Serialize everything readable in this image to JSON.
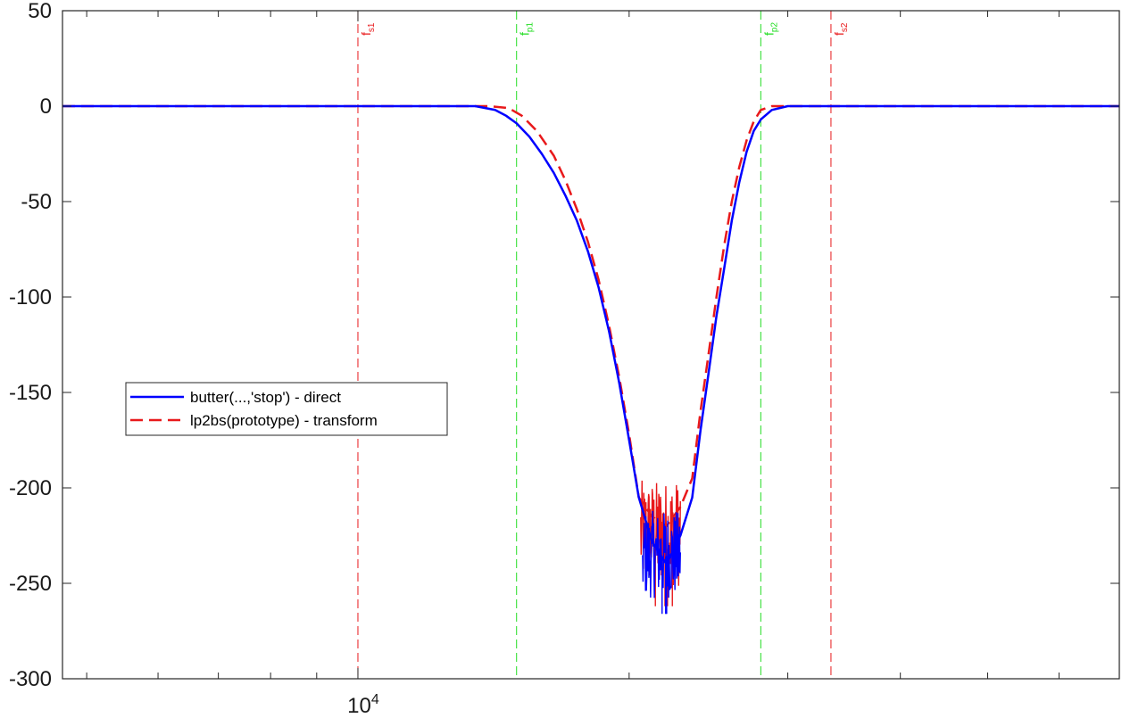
{
  "chart_data": {
    "type": "line",
    "title": "",
    "xlabel": "",
    "ylabel": "",
    "xscale": "log",
    "xlim": [
      4700,
      70000
    ],
    "ylim": [
      -300,
      50
    ],
    "grid": false,
    "legend_position": "left",
    "yticks": [
      50,
      0,
      -50,
      -100,
      -150,
      -200,
      -250,
      -300
    ],
    "ytick_labels": [
      "50",
      "0",
      "-50",
      "-100",
      "-150",
      "-200",
      "-250",
      "-300"
    ],
    "xticks": [
      5000,
      6000,
      7000,
      8000,
      9000,
      10000,
      20000,
      30000,
      40000,
      50000,
      60000,
      70000
    ],
    "xtick_label": {
      "base": "10",
      "exponent": "4",
      "at": 10000
    },
    "vertical_markers": [
      {
        "name": "fs1",
        "base": "f",
        "sub": "s1",
        "x": 10000,
        "color": "#e8191b"
      },
      {
        "name": "fp1",
        "base": "f",
        "sub": "p1",
        "x": 15000,
        "color": "#22dd22"
      },
      {
        "name": "fp2",
        "base": "f",
        "sub": "p2",
        "x": 28000,
        "color": "#22dd22"
      },
      {
        "name": "fs2",
        "base": "f",
        "sub": "s2",
        "x": 33500,
        "color": "#e8191b"
      }
    ],
    "series": [
      {
        "name": "butter(...,'stop') - direct",
        "color": "#0000ff",
        "style": "solid",
        "points": [
          [
            4700,
            0
          ],
          [
            12000,
            0
          ],
          [
            13500,
            0
          ],
          [
            14200,
            -2
          ],
          [
            14600,
            -5
          ],
          [
            15000,
            -9
          ],
          [
            15500,
            -16
          ],
          [
            16000,
            -25
          ],
          [
            16500,
            -35
          ],
          [
            17000,
            -47
          ],
          [
            17500,
            -60
          ],
          [
            18000,
            -76
          ],
          [
            18500,
            -95
          ],
          [
            19000,
            -118
          ],
          [
            19500,
            -145
          ],
          [
            20000,
            -175
          ],
          [
            20500,
            -205
          ],
          [
            21200,
            -228
          ],
          [
            22000,
            -240
          ],
          [
            22800,
            -225
          ],
          [
            23500,
            -205
          ],
          [
            24000,
            -170
          ],
          [
            24500,
            -140
          ],
          [
            25000,
            -110
          ],
          [
            25500,
            -85
          ],
          [
            26000,
            -60
          ],
          [
            26500,
            -40
          ],
          [
            27000,
            -24
          ],
          [
            27500,
            -13
          ],
          [
            28000,
            -7
          ],
          [
            28800,
            -2
          ],
          [
            30000,
            0
          ],
          [
            70000,
            0
          ]
        ],
        "noise": {
          "from": 20700,
          "to": 22800,
          "min": -266,
          "max": -212
        }
      },
      {
        "name": "lp2bs(prototype) - transform",
        "color": "#e8191b",
        "style": "dashed",
        "points": [
          [
            4700,
            0
          ],
          [
            12000,
            0
          ],
          [
            14000,
            0
          ],
          [
            14700,
            -1
          ],
          [
            15200,
            -5
          ],
          [
            15800,
            -13
          ],
          [
            16500,
            -26
          ],
          [
            17000,
            -39
          ],
          [
            17500,
            -54
          ],
          [
            18000,
            -71
          ],
          [
            18500,
            -91
          ],
          [
            19000,
            -115
          ],
          [
            19500,
            -142
          ],
          [
            20000,
            -172
          ],
          [
            20500,
            -205
          ],
          [
            21200,
            -215
          ],
          [
            22000,
            -220
          ],
          [
            22800,
            -210
          ],
          [
            23500,
            -195
          ],
          [
            24000,
            -160
          ],
          [
            24500,
            -130
          ],
          [
            25000,
            -100
          ],
          [
            25500,
            -73
          ],
          [
            26000,
            -50
          ],
          [
            26500,
            -32
          ],
          [
            27000,
            -18
          ],
          [
            27500,
            -8
          ],
          [
            28000,
            -2
          ],
          [
            28800,
            0
          ],
          [
            70000,
            0
          ]
        ],
        "noise": {
          "from": 20600,
          "to": 22800,
          "min": -262,
          "max": -196
        }
      }
    ]
  }
}
